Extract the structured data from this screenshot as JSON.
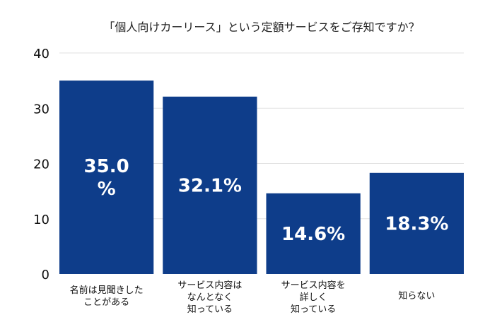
{
  "chart_data": {
    "type": "bar",
    "title": "「個人向けカーリース」という定額サービスをご存知ですか？",
    "xlabel": "",
    "ylabel": "",
    "ylim": [
      0,
      40
    ],
    "yticks": [
      0,
      10,
      20,
      30,
      40
    ],
    "grid": true,
    "legend": "none",
    "bar_color": "#0e3d8a",
    "categories": [
      [
        "名前は見聞きした",
        "ことがある"
      ],
      [
        "サービス内容は",
        "なんとなく",
        "知っている"
      ],
      [
        "サービス内容を",
        "詳しく",
        "知っている"
      ],
      [
        "知らない"
      ]
    ],
    "values": [
      35.0,
      32.1,
      14.6,
      18.3
    ],
    "data_labels": [
      [
        "35.0",
        "%"
      ],
      [
        "32.1%"
      ],
      [
        "14.6%"
      ],
      [
        "18.3%"
      ]
    ]
  }
}
